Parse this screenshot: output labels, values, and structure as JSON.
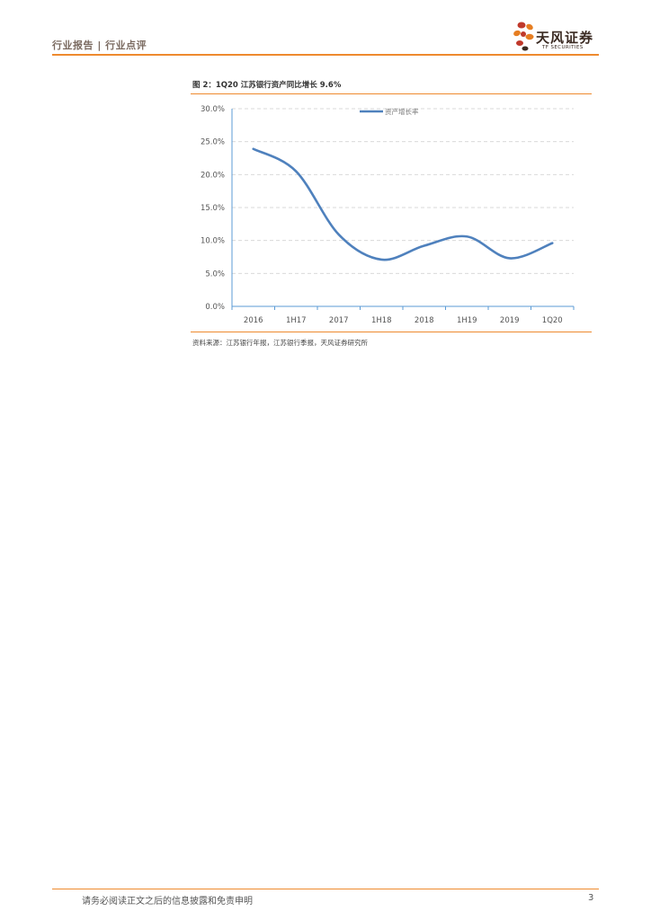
{
  "header": {
    "title": "行业报告 | 行业点评"
  },
  "logo": {
    "cn": "天风证券",
    "en": "TF SECURITIES"
  },
  "figure": {
    "title": "图 2：1Q20 江苏银行资产同比增长 9.6%",
    "source": "资料来源：江苏银行年报，江苏银行季报，天风证券研究所"
  },
  "chart_data": {
    "type": "line",
    "title": "",
    "xlabel": "",
    "ylabel": "",
    "categories": [
      "2016",
      "1H17",
      "2017",
      "1H18",
      "2018",
      "1H19",
      "2019",
      "1Q20"
    ],
    "series": [
      {
        "name": "资产增长率",
        "color": "#4f81bd",
        "values": [
          23.9,
          20.5,
          10.9,
          7.1,
          9.2,
          10.6,
          7.3,
          9.6
        ]
      }
    ],
    "ylim": [
      0,
      30
    ],
    "yticks": [
      "0.0%",
      "5.0%",
      "10.0%",
      "15.0%",
      "20.0%",
      "25.0%",
      "30.0%"
    ],
    "grid": "horizontal dashed",
    "legend": "top-center"
  },
  "footer": {
    "disclaimer": "请务必阅读正文之后的信息披露和免责申明",
    "page": "3"
  },
  "colors": {
    "accent": "#ee8a2e",
    "series": "#4f81bd",
    "axis": "#5b9bd5"
  }
}
